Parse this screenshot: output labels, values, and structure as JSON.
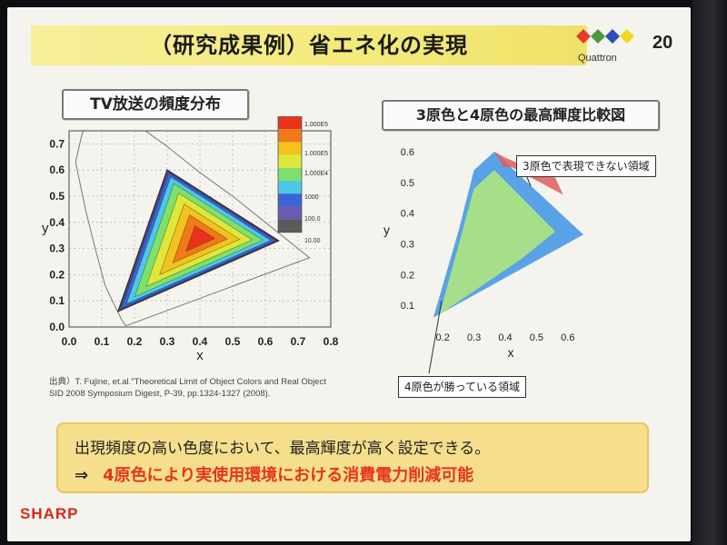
{
  "slide": {
    "title": "（研究成果例）省エネ化の実現",
    "logo_text": "Quattron",
    "page_number": "20",
    "brand": "SHARP"
  },
  "citation": {
    "line1": "出典）T. Fujine, et.al.\"Theoretical Limit of Object Colors and Real Object",
    "line2": "SID 2008 Symposium Digest, P-39, pp.1324-1327 (2008)."
  },
  "bottom": {
    "text1": "出現頻度の高い色度において、最高輝度が高く設定できる。",
    "arrow": "⇒",
    "text2": "4原色により実使用環境における消費電力削減可能"
  },
  "colors": {
    "title_bar": "#f4ea7a",
    "bottom_box": "#f6df8c",
    "emphasis_red": "#e8331e",
    "brand_red": "#d9261c",
    "blue_region": "#5aa2e6",
    "green_region": "#a6df8a",
    "red_region": "#e25b5b"
  },
  "chart_data": [
    {
      "type": "heatmap",
      "title": "TV放送の頻度分布",
      "xlabel": "x",
      "ylabel": "y",
      "xlim": [
        0.0,
        0.8
      ],
      "ylim": [
        0.0,
        0.75
      ],
      "x_ticks": [
        "0.0",
        "0.1",
        "0.2",
        "0.3",
        "0.4",
        "0.5",
        "0.6",
        "0.7",
        "0.8"
      ],
      "y_ticks": [
        "0.0",
        "0.1",
        "0.2",
        "0.3",
        "0.4",
        "0.5",
        "0.6",
        "0.7"
      ],
      "grid": true,
      "colorbar": {
        "labels": [
          "1.000E5",
          "1.000E5",
          "1.000E4",
          "1000",
          "100.0",
          "10.00"
        ],
        "colors": [
          "#e8341c",
          "#f07a18",
          "#f3c21e",
          "#dfe83a",
          "#7fe06a",
          "#4ec8e6",
          "#3a64d8",
          "#6a5ab0",
          "#5a5a5a"
        ]
      },
      "gamut_triangle": [
        [
          0.64,
          0.33
        ],
        [
          0.3,
          0.6
        ],
        [
          0.15,
          0.06
        ]
      ],
      "spectral_locus": [
        [
          0.175,
          0.005
        ],
        [
          0.17,
          0.01
        ],
        [
          0.16,
          0.03
        ],
        [
          0.14,
          0.08
        ],
        [
          0.11,
          0.16
        ],
        [
          0.08,
          0.3
        ],
        [
          0.05,
          0.45
        ],
        [
          0.02,
          0.63
        ],
        [
          0.04,
          0.74
        ],
        [
          0.08,
          0.83
        ],
        [
          0.2,
          0.78
        ],
        [
          0.3,
          0.69
        ],
        [
          0.4,
          0.59
        ],
        [
          0.5,
          0.5
        ],
        [
          0.6,
          0.4
        ],
        [
          0.7,
          0.3
        ],
        [
          0.735,
          0.265
        ],
        [
          0.175,
          0.005
        ]
      ]
    },
    {
      "type": "area",
      "title": "3原色と4原色の最高輝度比較図",
      "xlabel": "x",
      "ylabel": "y",
      "xlim": [
        0.15,
        0.65
      ],
      "ylim": [
        0.05,
        0.6
      ],
      "x_ticks": [
        "0.2",
        "0.3",
        "0.4",
        "0.5",
        "0.6"
      ],
      "y_ticks": [
        "0.1",
        "0.2",
        "0.3",
        "0.4",
        "0.5",
        "0.6"
      ],
      "grid": false,
      "series": [
        {
          "name": "4原色が勝っている領域",
          "color": "#5aa2e6",
          "points": [
            [
              0.65,
              0.33
            ],
            [
              0.365,
              0.6
            ],
            [
              0.3,
              0.54
            ],
            [
              0.25,
              0.34
            ],
            [
              0.17,
              0.06
            ]
          ]
        },
        {
          "name": "",
          "color": "#a6df8a",
          "points": [
            [
              0.56,
              0.34
            ],
            [
              0.365,
              0.54
            ],
            [
              0.3,
              0.48
            ],
            [
              0.19,
              0.07
            ],
            [
              0.45,
              0.25
            ]
          ]
        },
        {
          "name": "3原色で表現できない領域",
          "color": "#e25b5b",
          "points": [
            [
              0.365,
              0.6
            ],
            [
              0.405,
              0.578
            ],
            [
              0.56,
              0.515
            ],
            [
              0.585,
              0.46
            ],
            [
              0.42,
              0.55
            ],
            [
              0.395,
              0.55
            ]
          ]
        }
      ],
      "annotations": [
        "3原色で表現できない領域",
        "4原色が勝っている領域"
      ]
    }
  ]
}
